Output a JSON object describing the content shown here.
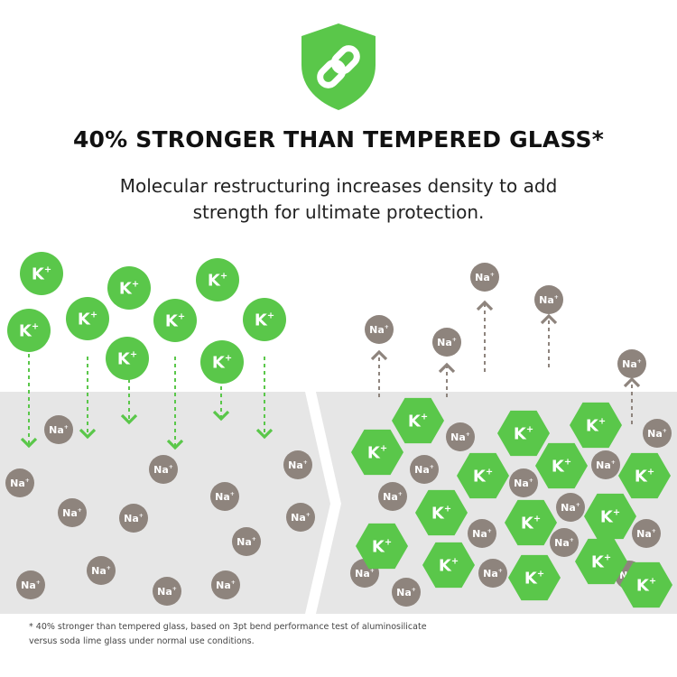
{
  "header": {
    "headline": "40% STRONGER THAN TEMPERED GLASS*",
    "subtitle_line1": "Molecular restructuring increases density to add",
    "subtitle_line2": "strength for ultimate protection."
  },
  "ions": {
    "k_label": "K",
    "na_label": "Na",
    "plus": "+"
  },
  "footnote": {
    "line1": "* 40% stronger than tempered glass, based on 3pt bend performance test of aluminosilicate",
    "line2": "versus soda lime glass under normal use conditions."
  },
  "colors": {
    "green": "#5ac74a",
    "gray_ion": "#8e847d",
    "glass": "#e6e6e6"
  }
}
